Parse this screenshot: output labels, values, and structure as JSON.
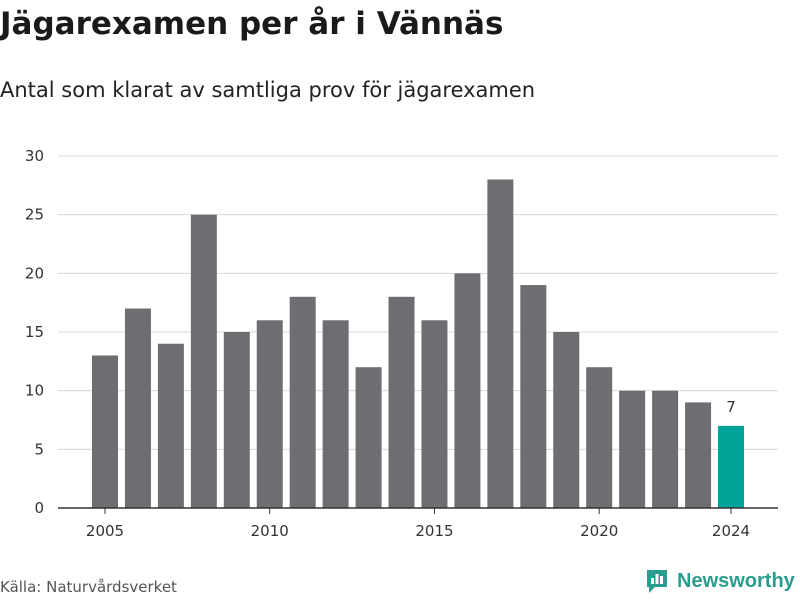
{
  "header": {
    "title": "Jägarexamen per år i Vännäs",
    "subtitle": "Antal som klarat av samtliga prov för jägarexamen"
  },
  "footer": {
    "source": "Källa: Naturvårdsverket",
    "brand": "Newsworthy"
  },
  "colors": {
    "bar": "#6e6d72",
    "highlight": "#00a398",
    "brand": "#2a9d8f"
  },
  "chart_data": {
    "type": "bar",
    "categories": [
      2005,
      2006,
      2007,
      2008,
      2009,
      2010,
      2011,
      2012,
      2013,
      2014,
      2015,
      2016,
      2017,
      2018,
      2019,
      2020,
      2021,
      2022,
      2023,
      2024
    ],
    "values": [
      13,
      17,
      14,
      25,
      15,
      16,
      18,
      16,
      12,
      18,
      16,
      20,
      28,
      19,
      15,
      12,
      10,
      10,
      9,
      7
    ],
    "highlight_category": 2024,
    "data_labels": [
      {
        "category": 2024,
        "text": "7"
      }
    ],
    "ylim": [
      0,
      30
    ],
    "yticks": [
      0,
      5,
      10,
      15,
      20,
      25,
      30
    ],
    "xticks": [
      2005,
      2010,
      2015,
      2020,
      2024
    ],
    "xlabel": "",
    "ylabel": "",
    "grid": true,
    "legend": "none"
  }
}
